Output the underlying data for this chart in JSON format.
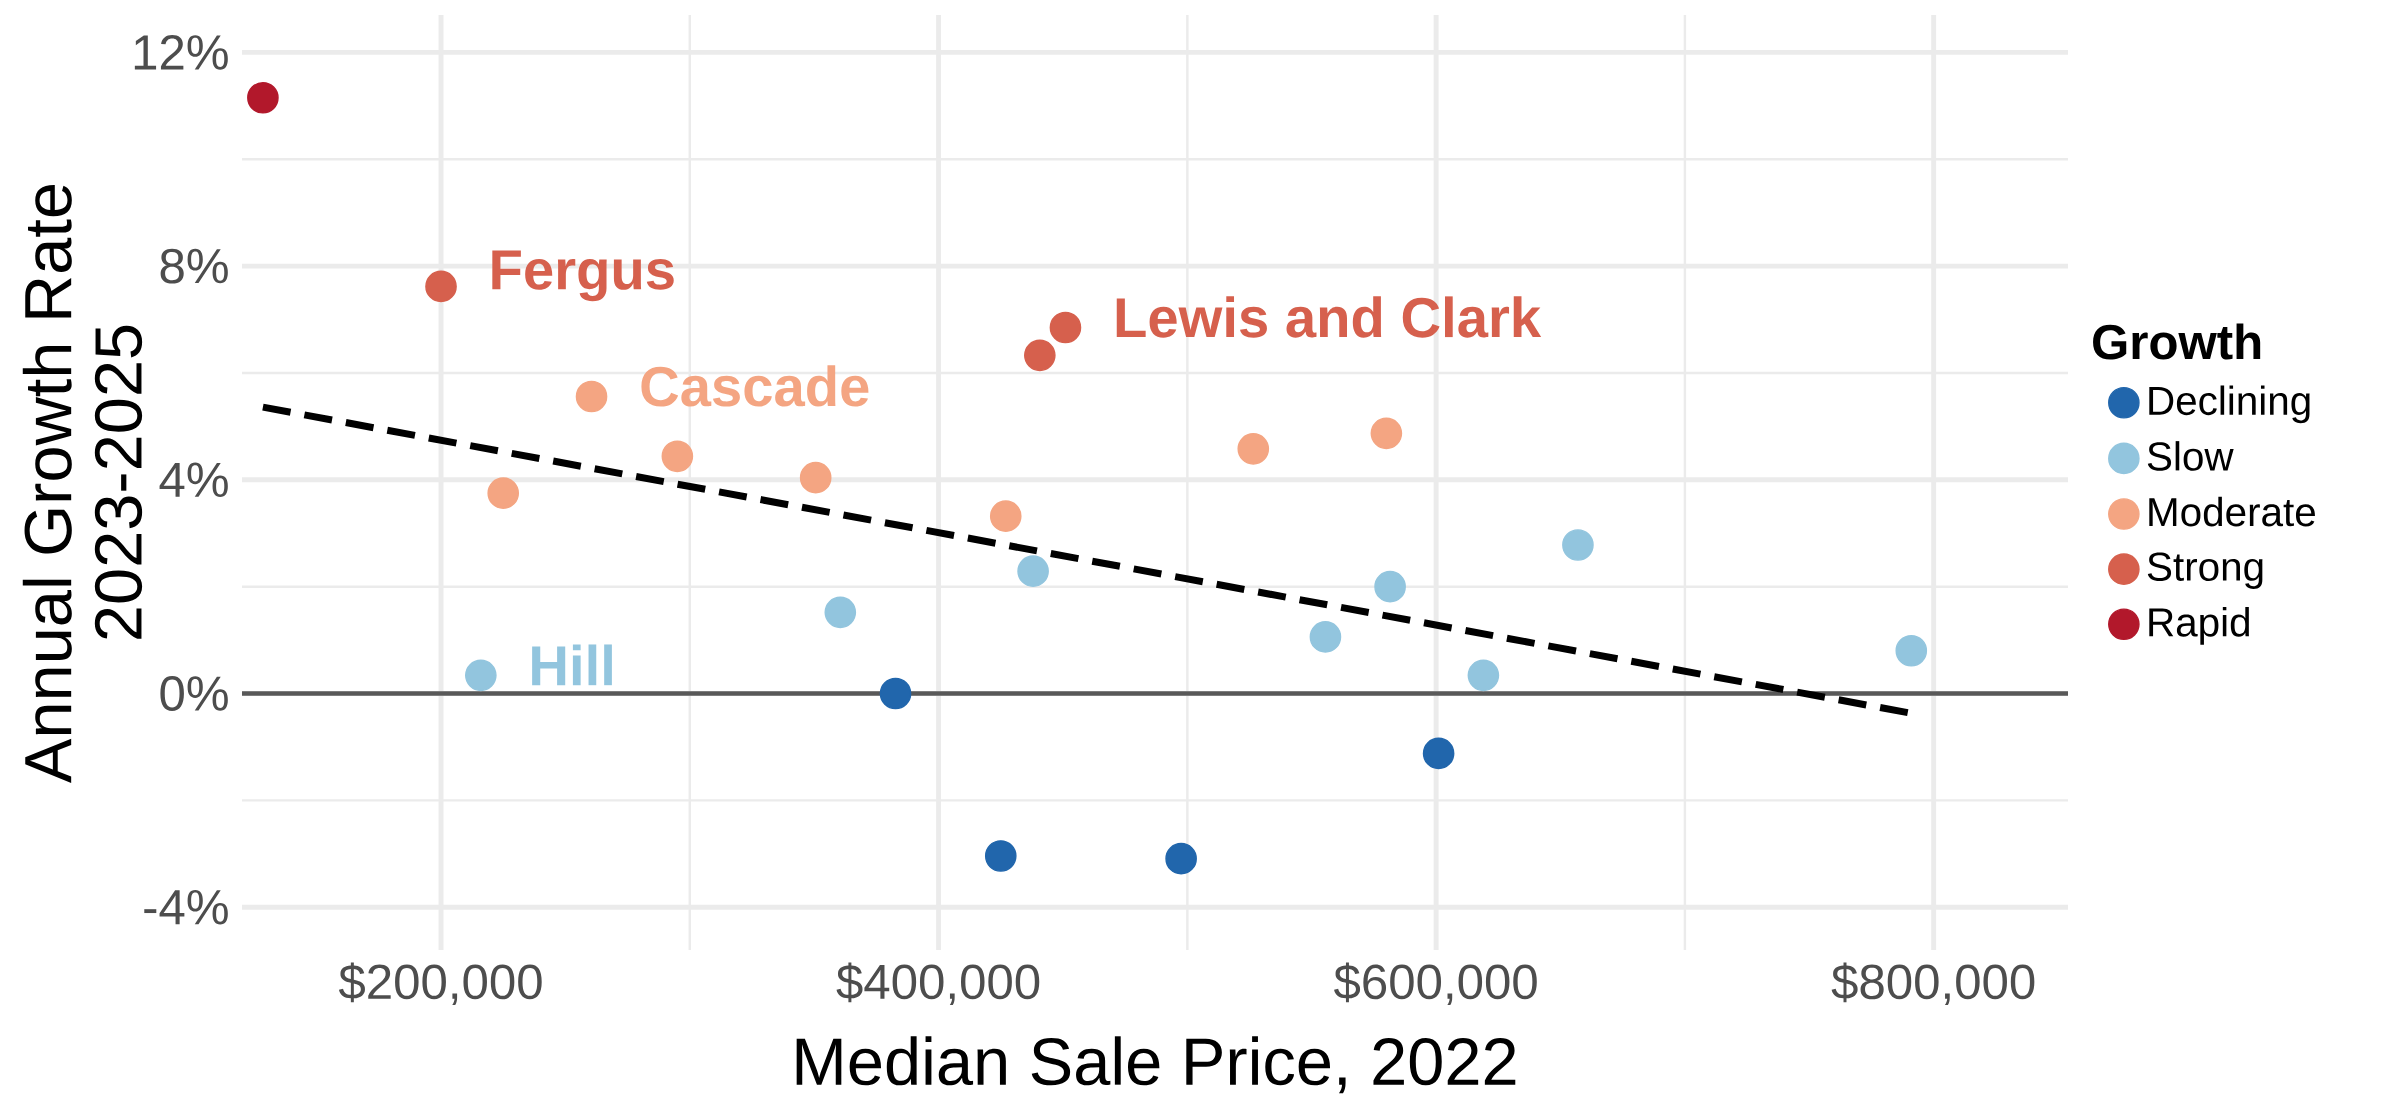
{
  "chart_data": {
    "type": "scatter",
    "xlabel": "Median Sale Price, 2022",
    "ylabel": "Annual Growth Rate 2023-2025",
    "legend_title": "Growth",
    "series": [
      {
        "name": "Declining",
        "color": "#2166ac",
        "marker": "circle",
        "x": [
          382700,
          425000,
          497500,
          601000
        ],
        "values": [
          0.0,
          -3.04,
          -3.09,
          -1.12
        ]
      },
      {
        "name": "Slow",
        "color": "#92c5de",
        "marker": "circle",
        "x": [
          216000,
          360500,
          438000,
          555500,
          581500,
          619000,
          657000,
          791000
        ],
        "values": [
          0.34,
          1.52,
          2.29,
          1.06,
          2.0,
          0.34,
          2.78,
          0.8
        ]
      },
      {
        "name": "Moderate",
        "color": "#f4a582",
        "marker": "circle",
        "x": [
          225000,
          260500,
          295000,
          350600,
          427000,
          526500,
          580000
        ],
        "values": [
          3.75,
          5.56,
          4.44,
          4.04,
          3.32,
          4.58,
          4.87
        ]
      },
      {
        "name": "Strong",
        "color": "#d6604d",
        "marker": "circle",
        "x": [
          200000,
          440700,
          451000
        ],
        "values": [
          7.62,
          6.33,
          6.85
        ]
      },
      {
        "name": "Rapid",
        "color": "#b2182b",
        "marker": "circle",
        "x": [
          128400
        ],
        "values": [
          11.15
        ]
      },
      {
        "type": "line",
        "color": "#000000",
        "line_style": "dashed",
        "marker": "none",
        "x": [
          128400,
          791000
        ],
        "values": [
          5.36,
          -0.37
        ]
      }
    ],
    "annotations": [
      {
        "text": "Fergus",
        "x": 200000,
        "y": 7.62
      },
      {
        "text": "Lewis and Clark",
        "x": 451000,
        "y": 6.85
      },
      {
        "text": "Cascade",
        "x": 260500,
        "y": 5.56
      },
      {
        "text": "Hill",
        "x": 216000,
        "y": 0.34
      }
    ],
    "ref_lines": [
      {
        "axis": "y",
        "value": 0,
        "color": "#595959"
      }
    ],
    "xlim": [
      120000,
      854000
    ],
    "ylim": [
      -4.8,
      12.7
    ],
    "xticks": [
      {
        "value": 200000,
        "label": "$200,000"
      },
      {
        "value": 400000,
        "label": "$400,000"
      },
      {
        "value": 600000,
        "label": "$600,000"
      },
      {
        "value": 800000,
        "label": "$800,000"
      }
    ],
    "yticks": [
      {
        "value": -4,
        "label": "-4%"
      },
      {
        "value": 0,
        "label": "0%"
      },
      {
        "value": 4,
        "label": "4%"
      },
      {
        "value": 8,
        "label": "8%"
      },
      {
        "value": 12,
        "label": "12%"
      }
    ],
    "grid": true,
    "legend": "right"
  }
}
